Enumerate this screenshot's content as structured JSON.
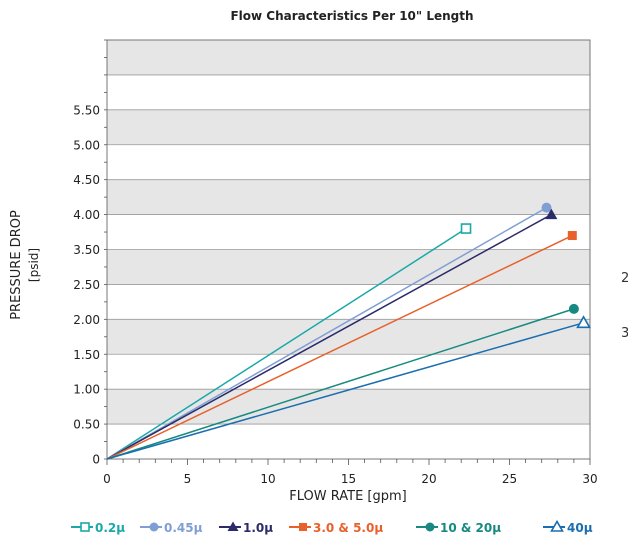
{
  "chart_data": {
    "type": "line",
    "title": "Flow Characteristics Per 10\" Length",
    "xlabel": "FLOW RATE [gpm]",
    "ylabel": [
      "PRESSURE DROP",
      "[psid]"
    ],
    "xlim": [
      0,
      30
    ],
    "ylim": [
      0,
      6
    ],
    "xticks": [
      "0",
      "5",
      "10",
      "15",
      "20",
      "25",
      "30"
    ],
    "yticks": [
      "0",
      "0.50",
      "1.00",
      "1.50",
      "2.00",
      "2.50",
      "3.50",
      "4.00",
      "4.50",
      "5.00",
      "5.50"
    ],
    "grid": true,
    "legend_position": "bottom",
    "series": [
      {
        "name": "0.2μ",
        "color": "#1aa8a8",
        "marker": "open-square",
        "x": [
          0,
          22.3
        ],
        "y": [
          0,
          3.3
        ]
      },
      {
        "name": "0.45μ",
        "color": "#7f9fd4",
        "marker": "filled-circle",
        "x": [
          0,
          27.3
        ],
        "y": [
          0,
          3.6
        ]
      },
      {
        "name": "1.0μ",
        "color": "#2b2a6b",
        "marker": "filled-triangle",
        "x": [
          0,
          27.6
        ],
        "y": [
          0,
          3.5
        ]
      },
      {
        "name": "3.0 & 5.0μ",
        "color": "#e8602a",
        "marker": "filled-square",
        "x": [
          0,
          28.9
        ],
        "y": [
          0,
          3.2
        ]
      },
      {
        "name": "10 & 20μ",
        "color": "#168a80",
        "marker": "filled-circle",
        "x": [
          0,
          29.0
        ],
        "y": [
          0,
          2.15
        ]
      },
      {
        "name": "40μ",
        "color": "#1a6eb0",
        "marker": "open-triangle",
        "x": [
          0,
          29.6
        ],
        "y": [
          0,
          1.95
        ]
      }
    ]
  },
  "stray_text": [
    "2",
    "3"
  ]
}
